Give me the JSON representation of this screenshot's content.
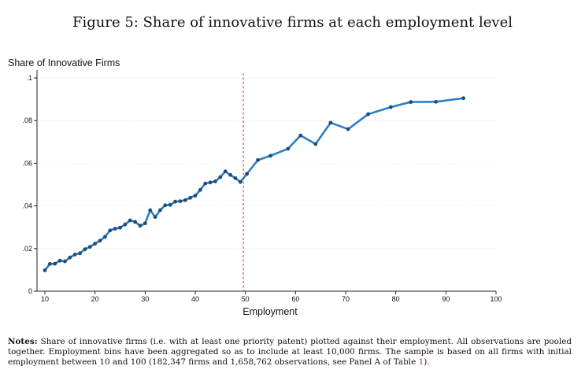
{
  "figure_title": "Figure 5: Share of innovative firms at each employment level",
  "notes": {
    "label": "Notes:",
    "text_before_ref": "Share of innovative firms (i.e. with at least one priority patent) plotted against their employment. All observations are pooled together. Employment bins have been aggregated so as to include at least 10,000 firms. The sample is based on all firms with initial employment between 10 and 100 (182,347 firms and 1,658,762 observations, see Panel A of Table ",
    "ref": "1",
    "text_after_ref": ")."
  },
  "colors": {
    "line": "#2a7fc7",
    "marker": "#1f4e79",
    "vline": "#e0403a",
    "grid": "#e6e6e6"
  },
  "chart_data": {
    "type": "line",
    "title": "",
    "ylabel": "Share of Innovative Firms",
    "xlabel": "Employment",
    "xlim": [
      10,
      100
    ],
    "ylim": [
      0,
      0.1
    ],
    "x_ticks": [
      10,
      20,
      30,
      40,
      50,
      60,
      70,
      80,
      90,
      100
    ],
    "y_ticks": [
      0,
      0.02,
      0.04,
      0.06,
      0.08,
      0.1
    ],
    "y_tick_labels": [
      "0",
      ".02",
      ".04",
      ".06",
      ".08",
      ".1"
    ],
    "vertical_line": {
      "x": 49.6,
      "style": "dashed"
    },
    "grid": true,
    "series": [
      {
        "name": "Share of innovative firms",
        "points": [
          [
            10,
            0.0098
          ],
          [
            11,
            0.0128
          ],
          [
            12,
            0.0129
          ],
          [
            13,
            0.0143
          ],
          [
            14,
            0.014
          ],
          [
            15,
            0.0158
          ],
          [
            16,
            0.0172
          ],
          [
            17,
            0.0178
          ],
          [
            18,
            0.0197
          ],
          [
            19,
            0.0208
          ],
          [
            20,
            0.0223
          ],
          [
            21,
            0.0237
          ],
          [
            22,
            0.0255
          ],
          [
            23,
            0.0285
          ],
          [
            24,
            0.0293
          ],
          [
            25,
            0.0298
          ],
          [
            26,
            0.0313
          ],
          [
            27,
            0.0332
          ],
          [
            28,
            0.0325
          ],
          [
            29,
            0.0307
          ],
          [
            30,
            0.0318
          ],
          [
            31,
            0.038
          ],
          [
            32,
            0.0348
          ],
          [
            33,
            0.038
          ],
          [
            34,
            0.0403
          ],
          [
            35,
            0.0405
          ],
          [
            36,
            0.042
          ],
          [
            37,
            0.0422
          ],
          [
            38,
            0.0427
          ],
          [
            39,
            0.0438
          ],
          [
            40,
            0.0448
          ],
          [
            41,
            0.0475
          ],
          [
            42,
            0.0505
          ],
          [
            43,
            0.051
          ],
          [
            44,
            0.0515
          ],
          [
            45,
            0.0535
          ],
          [
            46,
            0.0562
          ],
          [
            47,
            0.0545
          ],
          [
            48,
            0.053
          ],
          [
            49,
            0.0512
          ],
          [
            50.3,
            0.055
          ],
          [
            52.5,
            0.0615
          ],
          [
            55.0,
            0.0635
          ],
          [
            58.5,
            0.0668
          ],
          [
            61.0,
            0.073
          ],
          [
            64.0,
            0.069
          ],
          [
            67.0,
            0.079
          ],
          [
            70.5,
            0.076
          ],
          [
            74.5,
            0.083
          ],
          [
            79.0,
            0.0863
          ],
          [
            83.0,
            0.0887
          ],
          [
            88.0,
            0.0888
          ],
          [
            93.5,
            0.0905
          ]
        ]
      }
    ]
  }
}
